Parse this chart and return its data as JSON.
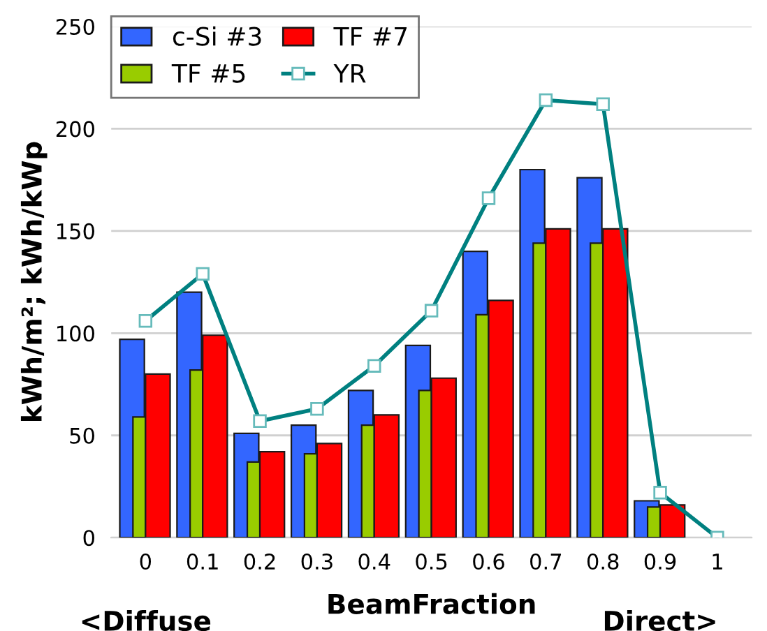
{
  "chart_data": {
    "type": "bar",
    "xlabel": "BeamFraction",
    "ylabel": "kWh/m²; kWh/kWp",
    "annotations": [
      "<Diffuse",
      "Direct>"
    ],
    "categories": [
      "0",
      "0.1",
      "0.2",
      "0.3",
      "0.4",
      "0.5",
      "0.6",
      "0.7",
      "0.8",
      "0.9",
      "1"
    ],
    "series": [
      {
        "name": "c-Si #3",
        "color": "#3366ff",
        "values": [
          97,
          120,
          51,
          55,
          72,
          94,
          140,
          180,
          176,
          18,
          null
        ]
      },
      {
        "name": "TF #5",
        "color": "#99cc00",
        "values": [
          59,
          82,
          37,
          41,
          55,
          72,
          109,
          144,
          144,
          15,
          null
        ]
      },
      {
        "name": "TF #7",
        "color": "#ff0000",
        "values": [
          80,
          99,
          42,
          46,
          60,
          78,
          116,
          151,
          151,
          16,
          null
        ]
      },
      {
        "name": "YR",
        "type": "line",
        "color": "#008080",
        "marker": "square",
        "values": [
          106,
          129,
          57,
          63,
          84,
          111,
          166,
          214,
          212,
          22,
          0
        ]
      }
    ],
    "ylim": [
      0,
      250
    ],
    "yticks": [
      0,
      50,
      100,
      150,
      200,
      250
    ],
    "grid": "y",
    "legend": "top left"
  }
}
